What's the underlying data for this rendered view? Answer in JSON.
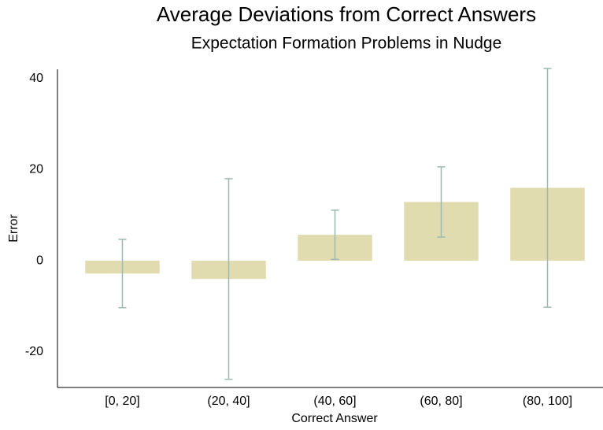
{
  "chart_data": {
    "type": "bar",
    "title": "Average Deviations from Correct Answers",
    "subtitle": "Expectation Formation Problems in Nudge",
    "x_label": "Correct Answer",
    "y_label": "Error",
    "categories": [
      "[0, 20]",
      "(20, 40]",
      "(40, 60]",
      "(60, 80]",
      "(80, 100]"
    ],
    "values": [
      -2.8,
      -4.0,
      5.7,
      12.9,
      16.0
    ],
    "errors": [
      7.5,
      22.0,
      5.4,
      7.7,
      26.2
    ],
    "color": "#e0dcb0",
    "error_color": "#9cbab2",
    "ylim": [
      -27.8,
      42
    ],
    "yticks": [
      -20,
      0,
      20,
      40
    ],
    "grid": false
  }
}
